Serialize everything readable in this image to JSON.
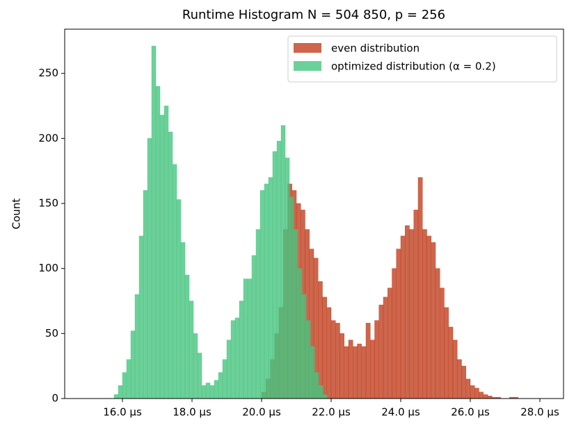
{
  "chart_data": {
    "type": "histogram",
    "title": "Runtime Histogram N = 504 850, p = 256",
    "ylabel": "Count",
    "xlim": [
      14.34,
      28.68
    ],
    "ylim": [
      0,
      284
    ],
    "xticks": [
      {
        "value": 16,
        "label": "16.0 µs"
      },
      {
        "value": 18,
        "label": "18.0 µs"
      },
      {
        "value": 20,
        "label": "20.0 µs"
      },
      {
        "value": 22,
        "label": "22.0 µs"
      },
      {
        "value": 24,
        "label": "24.0 µs"
      },
      {
        "value": 26,
        "label": "26.0 µs"
      },
      {
        "value": 28,
        "label": "28.0 µs"
      }
    ],
    "yticks": [
      0,
      50,
      100,
      150,
      200,
      250
    ],
    "legend": "upper right",
    "alpha": 0.8,
    "series": [
      {
        "name": "even distribution",
        "color": "#c1401f",
        "bins": [
          20,
          20.125,
          20.25,
          20.375,
          20.5,
          20.625,
          20.75,
          20.875,
          21,
          21.125,
          21.25,
          21.375,
          21.5,
          21.625,
          21.75,
          21.875,
          22,
          22.125,
          22.25,
          22.375,
          22.5,
          22.625,
          22.75,
          22.875,
          23,
          23.125,
          23.25,
          23.375,
          23.5,
          23.625,
          23.75,
          23.875,
          24,
          24.125,
          24.25,
          24.375,
          24.5,
          24.625,
          24.75,
          24.875,
          25,
          25.125,
          25.25,
          25.375,
          25.5,
          25.625,
          25.75,
          25.875,
          26,
          26.125,
          26.25,
          26.375,
          26.5,
          26.625,
          26.75,
          26.875,
          27,
          27.125,
          27.25,
          27.375,
          27.5
        ],
        "values": [
          5,
          15,
          30,
          50,
          70,
          130,
          165,
          160,
          150,
          145,
          130,
          115,
          108,
          90,
          78,
          70,
          60,
          58,
          50,
          40,
          45,
          40,
          42,
          40,
          58,
          45,
          60,
          72,
          78,
          85,
          100,
          115,
          125,
          133,
          130,
          145,
          170,
          130,
          125,
          120,
          100,
          85,
          70,
          55,
          45,
          30,
          25,
          15,
          10,
          8,
          5,
          3,
          2,
          1,
          1,
          0,
          0,
          1,
          1,
          0
        ]
      },
      {
        "name": "optimized distribution (α = 0.2)",
        "color": "#47c47f",
        "bins": [
          15.76,
          15.88,
          16.0,
          16.12,
          16.24,
          16.36,
          16.48,
          16.6,
          16.72,
          16.84,
          16.96,
          17.08,
          17.2,
          17.32,
          17.44,
          17.56,
          17.68,
          17.8,
          17.92,
          18.04,
          18.16,
          18.28,
          18.4,
          18.52,
          18.64,
          18.76,
          18.88,
          19.0,
          19.12,
          19.24,
          19.36,
          19.48,
          19.6,
          19.72,
          19.84,
          19.96,
          20.08,
          20.2,
          20.32,
          20.44,
          20.56,
          20.68,
          20.8,
          20.92,
          21.04,
          21.16,
          21.28,
          21.4,
          21.52,
          21.64,
          21.76,
          21.88
        ],
        "values": [
          3,
          10,
          20,
          30,
          52,
          80,
          125,
          160,
          200,
          271,
          240,
          218,
          225,
          205,
          180,
          153,
          120,
          95,
          75,
          50,
          35,
          10,
          12,
          10,
          14,
          20,
          30,
          45,
          60,
          62,
          75,
          92,
          92,
          110,
          130,
          160,
          165,
          170,
          190,
          198,
          210,
          185,
          155,
          130,
          100,
          80,
          60,
          40,
          20,
          10,
          3
        ]
      }
    ]
  }
}
